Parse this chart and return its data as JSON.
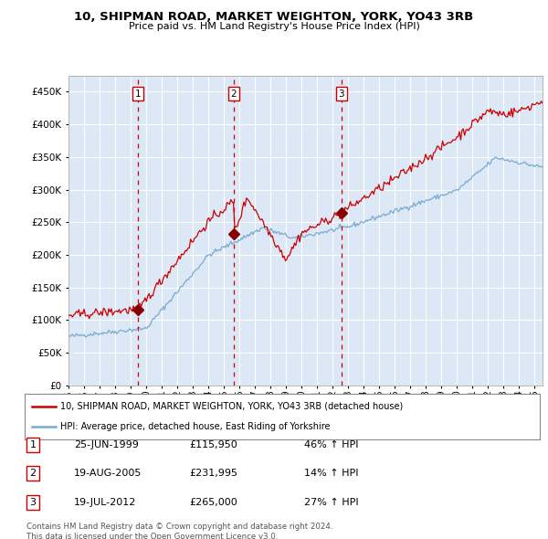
{
  "title": "10, SHIPMAN ROAD, MARKET WEIGHTON, YORK, YO43 3RB",
  "subtitle": "Price paid vs. HM Land Registry's House Price Index (HPI)",
  "ylim": [
    0,
    475000
  ],
  "yticks": [
    0,
    50000,
    100000,
    150000,
    200000,
    250000,
    300000,
    350000,
    400000,
    450000
  ],
  "xlim_start": 1995.0,
  "xlim_end": 2025.5,
  "sale_dates": [
    1999.48,
    2005.63,
    2012.55
  ],
  "sale_prices": [
    115950,
    231995,
    265000
  ],
  "sale_labels": [
    "1",
    "2",
    "3"
  ],
  "plot_bg_color": "#dce8f5",
  "red_line_color": "#cc0000",
  "blue_line_color": "#7aaad0",
  "legend_label_red": "10, SHIPMAN ROAD, MARKET WEIGHTON, YORK, YO43 3RB (detached house)",
  "legend_label_blue": "HPI: Average price, detached house, East Riding of Yorkshire",
  "table_rows": [
    [
      "1",
      "25-JUN-1999",
      "£115,950",
      "46% ↑ HPI"
    ],
    [
      "2",
      "19-AUG-2005",
      "£231,995",
      "14% ↑ HPI"
    ],
    [
      "3",
      "19-JUL-2012",
      "£265,000",
      "27% ↑ HPI"
    ]
  ],
  "footnote": "Contains HM Land Registry data © Crown copyright and database right 2024.\nThis data is licensed under the Open Government Licence v3.0.",
  "dashed_line_color": "#cc0000",
  "marker_color": "#880000"
}
